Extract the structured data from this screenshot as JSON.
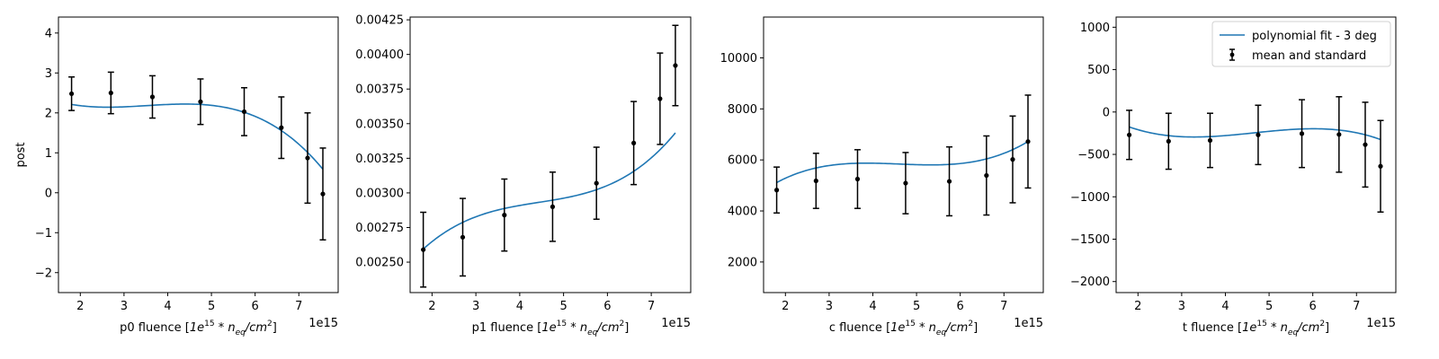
{
  "chart_data": [
    {
      "type": "line",
      "xlabel_main": "p0 fluence [",
      "xlabel_exp": "1e^{15} * n_{eq}/cm^{2}",
      "xlabel_close": "]",
      "ylabel": "post",
      "x_offset_label": "1e15",
      "xlim": [
        1.5,
        7.9
      ],
      "ylim": [
        -2.5,
        4.4
      ],
      "xticks": [
        "2",
        "3",
        "4",
        "5",
        "6",
        "7"
      ],
      "xtick_values": [
        2,
        3,
        4,
        5,
        6,
        7
      ],
      "yticks": [
        "−2",
        "−1",
        "0",
        "1",
        "2",
        "3",
        "4"
      ],
      "ytick_values": [
        -2,
        -1,
        0,
        1,
        2,
        3,
        4
      ],
      "points": [
        {
          "x": 1.8,
          "y": 2.48,
          "err": 0.42
        },
        {
          "x": 2.7,
          "y": 2.5,
          "err": 0.52
        },
        {
          "x": 3.65,
          "y": 2.4,
          "err": 0.53
        },
        {
          "x": 4.75,
          "y": 2.28,
          "err": 0.57
        },
        {
          "x": 5.75,
          "y": 2.03,
          "err": 0.6
        },
        {
          "x": 6.6,
          "y": 1.63,
          "err": 0.77
        },
        {
          "x": 7.2,
          "y": 0.87,
          "err": 1.13
        },
        {
          "x": 7.55,
          "y": -0.03,
          "err": 1.15
        }
      ],
      "fit_coeffs": [
        3.1855,
        -0.98897,
        0.29999,
        -0.028416
      ],
      "fit_range": [
        1.8,
        7.55
      ],
      "legend": null
    },
    {
      "type": "line",
      "xlabel_main": "p1 fluence [",
      "xlabel_exp": "1e^{15} * n_{eq}/cm^{2}",
      "xlabel_close": "]",
      "ylabel": "",
      "x_offset_label": "1e15",
      "xlim": [
        1.5,
        7.9
      ],
      "ylim": [
        0.00228,
        0.00427
      ],
      "xticks": [
        "2",
        "3",
        "4",
        "5",
        "6",
        "7"
      ],
      "xtick_values": [
        2,
        3,
        4,
        5,
        6,
        7
      ],
      "yticks": [
        "0.00250",
        "0.00275",
        "0.00300",
        "0.00325",
        "0.00350",
        "0.00375",
        "0.00400",
        "0.00425"
      ],
      "ytick_values": [
        0.0025,
        0.00275,
        0.003,
        0.00325,
        0.0035,
        0.00375,
        0.004,
        0.00425
      ],
      "points": [
        {
          "x": 1.8,
          "y": 0.00259,
          "err": 0.00027
        },
        {
          "x": 2.7,
          "y": 0.00268,
          "err": 0.00028
        },
        {
          "x": 3.65,
          "y": 0.00284,
          "err": 0.00026
        },
        {
          "x": 4.75,
          "y": 0.0029,
          "err": 0.00025
        },
        {
          "x": 5.75,
          "y": 0.00307,
          "err": 0.00026
        },
        {
          "x": 6.6,
          "y": 0.00336,
          "err": 0.0003
        },
        {
          "x": 7.2,
          "y": 0.00368,
          "err": 0.00033
        },
        {
          "x": 7.55,
          "y": 0.00392,
          "err": 0.00029
        }
      ],
      "fit_coeffs": [
        0.0017225,
        0.00072022,
        -0.00015153,
        1.1411e-05
      ],
      "fit_range": [
        1.8,
        7.55
      ],
      "legend": null
    },
    {
      "type": "line",
      "xlabel_main": "c fluence [",
      "xlabel_exp": "1e^{15} * n_{eq}/cm^{2}",
      "xlabel_close": "]",
      "ylabel": "",
      "x_offset_label": "1e15",
      "xlim": [
        1.5,
        7.9
      ],
      "ylim": [
        800,
        11600
      ],
      "xticks": [
        "2",
        "3",
        "4",
        "5",
        "6",
        "7"
      ],
      "xtick_values": [
        2,
        3,
        4,
        5,
        6,
        7
      ],
      "yticks": [
        "2000",
        "4000",
        "6000",
        "8000",
        "10000"
      ],
      "ytick_values": [
        2000,
        4000,
        6000,
        8000,
        10000
      ],
      "points": [
        {
          "x": 1.8,
          "y": 4820,
          "err": 900
        },
        {
          "x": 2.7,
          "y": 5180,
          "err": 1080
        },
        {
          "x": 3.65,
          "y": 5250,
          "err": 1150
        },
        {
          "x": 4.75,
          "y": 5090,
          "err": 1200
        },
        {
          "x": 5.75,
          "y": 5160,
          "err": 1350
        },
        {
          "x": 6.6,
          "y": 5390,
          "err": 1550
        },
        {
          "x": 7.2,
          "y": 6020,
          "err": 1700
        },
        {
          "x": 7.55,
          "y": 6720,
          "err": 1820
        }
      ],
      "fit_coeffs": [
        2070,
        2600,
        -581,
        42.15
      ],
      "fit_range": [
        1.8,
        7.55
      ],
      "legend": null
    },
    {
      "type": "line",
      "xlabel_main": "t fluence [",
      "xlabel_exp": "1e^{15} * n_{eq}/cm^{2}",
      "xlabel_close": "]",
      "ylabel": "",
      "x_offset_label": "1e15",
      "xlim": [
        1.5,
        7.9
      ],
      "ylim": [
        -2130,
        1120
      ],
      "xticks": [
        "2",
        "3",
        "4",
        "5",
        "6",
        "7"
      ],
      "xtick_values": [
        2,
        3,
        4,
        5,
        6,
        7
      ],
      "yticks": [
        "−2000",
        "−1500",
        "−1000",
        "−500",
        "0",
        "500",
        "1000"
      ],
      "ytick_values": [
        -2000,
        -1500,
        -1000,
        -500,
        0,
        500,
        1000
      ],
      "points": [
        {
          "x": 1.8,
          "y": -270,
          "err": 290
        },
        {
          "x": 2.7,
          "y": -345,
          "err": 330
        },
        {
          "x": 3.65,
          "y": -335,
          "err": 320
        },
        {
          "x": 4.75,
          "y": -270,
          "err": 350
        },
        {
          "x": 5.75,
          "y": -255,
          "err": 400
        },
        {
          "x": 6.6,
          "y": -265,
          "err": 445
        },
        {
          "x": 7.2,
          "y": -385,
          "err": 500
        },
        {
          "x": 7.55,
          "y": -640,
          "err": 540
        }
      ],
      "fit_coeffs": [
        472,
        -570,
        134,
        -9.6
      ],
      "fit_range": [
        1.8,
        7.55
      ],
      "legend": {
        "position": "upper right",
        "fit_label": "polynomial fit - 3 deg",
        "points_label": "mean and standard"
      }
    }
  ],
  "colors": {
    "fit_line": "#1f77b4",
    "points": "#000000",
    "axes": "#000000"
  }
}
